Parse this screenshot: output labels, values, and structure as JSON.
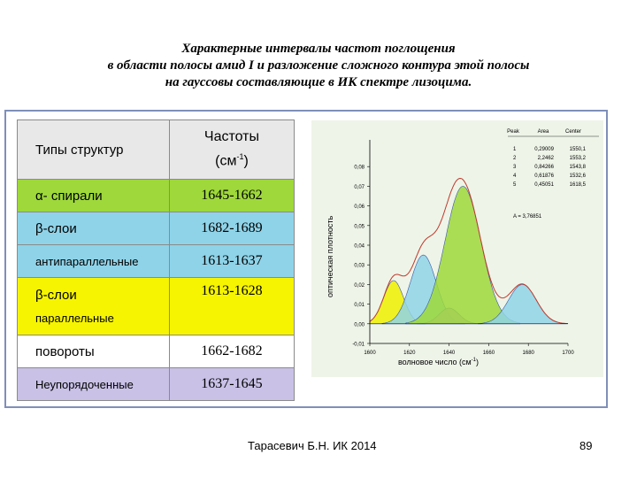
{
  "title": {
    "line1": "Характерные интервалы частот поглощения",
    "line2": "в области полосы амид I и разложение сложного контура этой полосы",
    "line3": "на гауссовы составляющие в ИК спектре лизоцима."
  },
  "table": {
    "header_left": "Типы структур",
    "header_right_1": "Частоты",
    "header_right_2": "(см",
    "header_right_sup": "-1",
    "header_right_3": ")",
    "rows": [
      {
        "label": "α- спирали",
        "value": "1645-1662",
        "color": "#9ed83a"
      },
      {
        "label": "β-слои",
        "value": "1682-1689",
        "color": "#8fd3e8"
      },
      {
        "label": "антипараллельные",
        "value": "1613-1637",
        "color": "#8fd3e8"
      },
      {
        "label": "β-слои",
        "label2": "параллельные",
        "value": "1613-1628",
        "color": "#f6f400"
      },
      {
        "label": "повороты",
        "value": "1662-1682",
        "color": "#ffffff"
      },
      {
        "label": "Неупорядоченные",
        "value": "1637-1645",
        "color": "#c9c1e6"
      }
    ]
  },
  "chart_data": {
    "type": "area",
    "ylabel": "оптическая плотность",
    "xlabel": "волновое число (см",
    "xlabel_sup": "-1",
    "xlabel_end": ")",
    "xlim": [
      1600,
      1700
    ],
    "ylim": [
      -0.01,
      0.09
    ],
    "xticks": [
      "1600",
      "1620",
      "1640",
      "1660",
      "1680",
      "1700"
    ],
    "yticks": [
      "-0,01",
      "0,00",
      "0,01",
      "0,02",
      "0,03",
      "0,04",
      "0,05",
      "0,06",
      "0,07",
      "0,08"
    ],
    "legend_header": [
      "Peak",
      "Area",
      "Center"
    ],
    "legend_rows": [
      [
        "1",
        "0,29009",
        "1550,1"
      ],
      [
        "2",
        "2,2462",
        "1553,2"
      ],
      [
        "3",
        "0,84266",
        "1543,8"
      ],
      [
        "4",
        "0,61876",
        "1532,6"
      ],
      [
        "5",
        "0,45051",
        "1618,5"
      ]
    ],
    "chi_label": "A = 3,76851",
    "series": [
      {
        "center": 1612,
        "amp": 0.022,
        "sigma": 5,
        "color": "#f0f000"
      },
      {
        "center": 1627,
        "amp": 0.035,
        "sigma": 6.5,
        "color": "#8fd3e8"
      },
      {
        "center": 1640,
        "amp": 0.008,
        "sigma": 5,
        "color": "#c9a0e0"
      },
      {
        "center": 1647,
        "amp": 0.07,
        "sigma": 9,
        "color": "#9ed83a"
      },
      {
        "center": 1677,
        "amp": 0.02,
        "sigma": 7,
        "color": "#8fd3e8"
      }
    ],
    "envelope_color": "#c0392b"
  },
  "footer": {
    "author": "Тарасевич Б.Н.  ИК 2014",
    "page": "89"
  }
}
